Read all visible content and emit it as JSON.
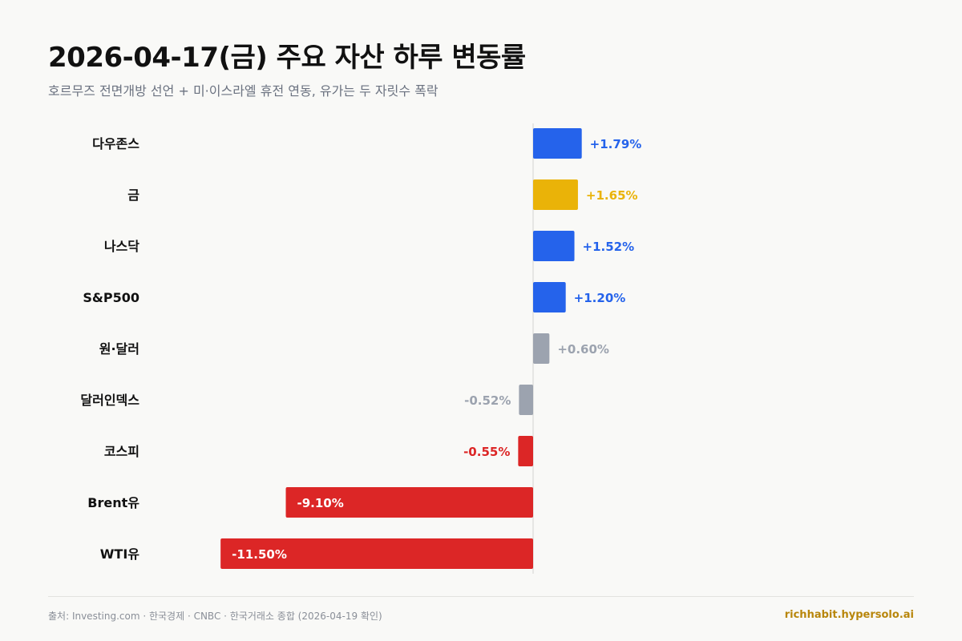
{
  "header": {
    "title": "2026-04-17(금) 주요 자산 하루 변동률",
    "subtitle": "호르무즈 전면개방 선언 + 미·이스라엘 휴전 연동, 유가는 두 자릿수 폭락"
  },
  "footer": {
    "source": "출처: Investing.com · 한국경제 · CNBC · 한국거래소 종합 (2026-04-19 확인)",
    "brand": "richhabit.hypersolo.ai"
  },
  "colors": {
    "blue": "#2563eb",
    "gold": "#eab308",
    "gray": "#9ca3af",
    "red": "#dc2626",
    "label_text": "#111111"
  },
  "chart_data": {
    "type": "bar",
    "orientation": "horizontal",
    "categories": [
      "다우존스",
      "금",
      "나스닥",
      "S&P500",
      "원·달러",
      "달러인덱스",
      "코스피",
      "Brent유",
      "WTI유"
    ],
    "values": [
      1.79,
      1.65,
      1.52,
      1.2,
      0.6,
      -0.52,
      -0.55,
      -9.1,
      -11.5
    ],
    "value_labels": [
      "+1.79%",
      "+1.65%",
      "+1.52%",
      "+1.20%",
      "+0.60%",
      "-0.52%",
      "-0.55%",
      "-9.10%",
      "-11.50%"
    ],
    "bar_colors": [
      "blue",
      "gold",
      "blue",
      "blue",
      "gray",
      "gray",
      "red",
      "red",
      "red"
    ],
    "unit": "%",
    "title": "2026-04-17(금) 주요 자산 하루 변동률",
    "xlabel": "",
    "ylabel": "",
    "grid": false,
    "zero_line": true,
    "legend": "none"
  }
}
